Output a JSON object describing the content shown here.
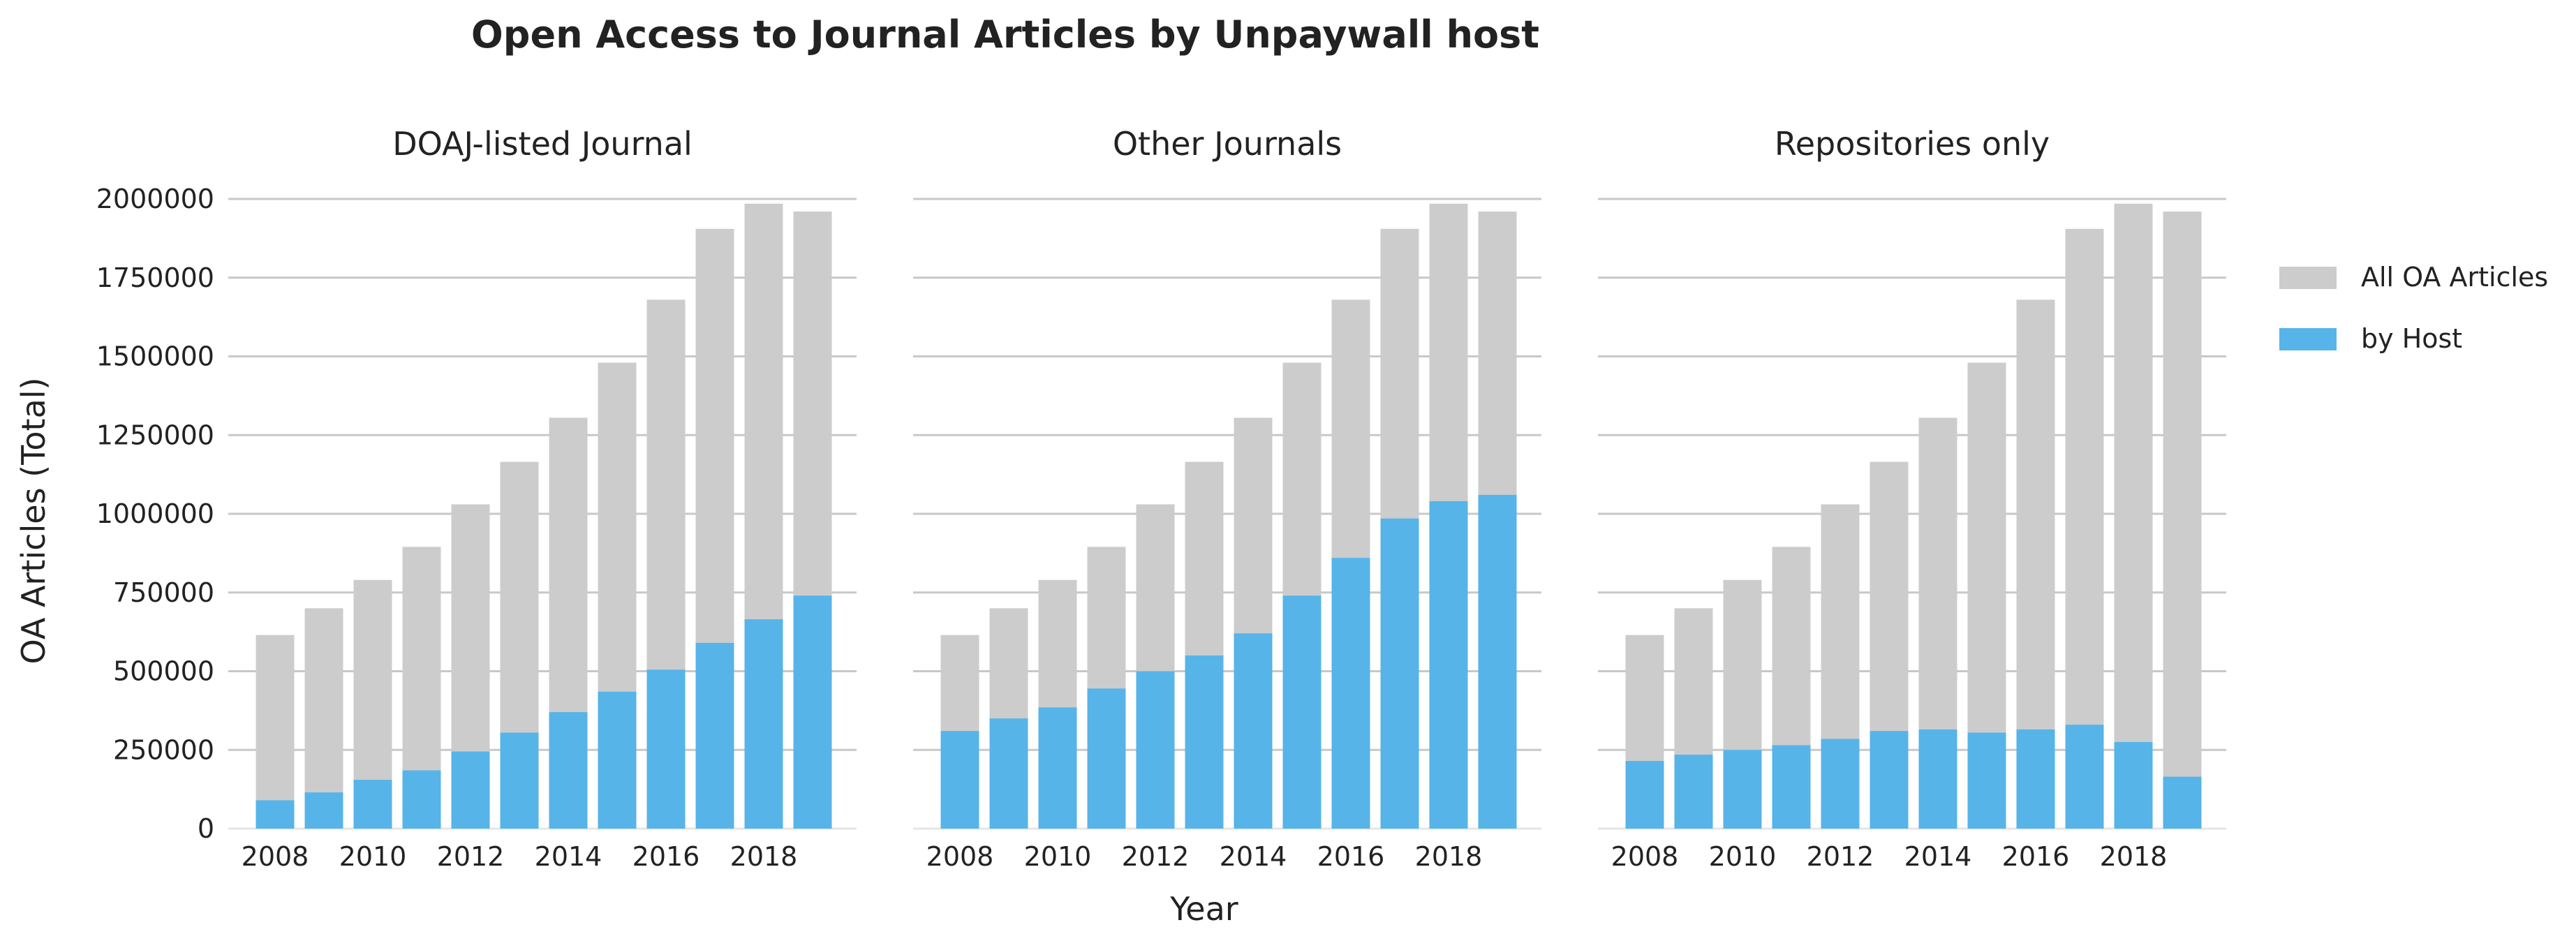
{
  "title": "Open Access to Journal Articles by Unpaywall host",
  "ylabel": "OA Articles (Total)",
  "xlabel": "Year",
  "legend": {
    "placement": "right",
    "items": [
      {
        "label": "All OA Articles",
        "color": "#cccccc"
      },
      {
        "label": "by Host",
        "color": "#56b4e9"
      }
    ]
  },
  "chart_data": [
    {
      "type": "bar",
      "title": "DOAJ-listed Journal",
      "x": [
        2008,
        2009,
        2010,
        2011,
        2012,
        2013,
        2014,
        2015,
        2016,
        2017,
        2018,
        2019
      ],
      "series": [
        {
          "name": "All OA Articles",
          "color": "#cccccc",
          "values": [
            615000,
            700000,
            790000,
            895000,
            1030000,
            1165000,
            1305000,
            1480000,
            1680000,
            1905000,
            1985000,
            1960000
          ]
        },
        {
          "name": "by Host",
          "color": "#56b4e9",
          "values": [
            90000,
            115000,
            155000,
            185000,
            245000,
            305000,
            370000,
            435000,
            505000,
            590000,
            665000,
            740000
          ]
        }
      ],
      "xticks": [
        2008,
        2010,
        2012,
        2014,
        2016,
        2018
      ],
      "yticks": [
        0,
        250000,
        500000,
        750000,
        1000000,
        1250000,
        1500000,
        1750000,
        2000000
      ],
      "ylim": [
        0,
        2000000
      ],
      "grid": "y"
    },
    {
      "type": "bar",
      "title": "Other Journals",
      "x": [
        2008,
        2009,
        2010,
        2011,
        2012,
        2013,
        2014,
        2015,
        2016,
        2017,
        2018,
        2019
      ],
      "series": [
        {
          "name": "All OA Articles",
          "color": "#cccccc",
          "values": [
            615000,
            700000,
            790000,
            895000,
            1030000,
            1165000,
            1305000,
            1480000,
            1680000,
            1905000,
            1985000,
            1960000
          ]
        },
        {
          "name": "by Host",
          "color": "#56b4e9",
          "values": [
            310000,
            350000,
            385000,
            445000,
            500000,
            550000,
            620000,
            740000,
            860000,
            985000,
            1040000,
            1060000
          ]
        }
      ],
      "xticks": [
        2008,
        2010,
        2012,
        2014,
        2016,
        2018
      ],
      "ylim": [
        0,
        2000000
      ],
      "grid": "y"
    },
    {
      "type": "bar",
      "title": "Repositories only",
      "x": [
        2008,
        2009,
        2010,
        2011,
        2012,
        2013,
        2014,
        2015,
        2016,
        2017,
        2018,
        2019
      ],
      "series": [
        {
          "name": "All OA Articles",
          "color": "#cccccc",
          "values": [
            615000,
            700000,
            790000,
            895000,
            1030000,
            1165000,
            1305000,
            1480000,
            1680000,
            1905000,
            1985000,
            1960000
          ]
        },
        {
          "name": "by Host",
          "color": "#56b4e9",
          "values": [
            215000,
            235000,
            250000,
            265000,
            285000,
            310000,
            315000,
            305000,
            315000,
            330000,
            275000,
            165000
          ]
        }
      ],
      "xticks": [
        2008,
        2010,
        2012,
        2014,
        2016,
        2018
      ],
      "ylim": [
        0,
        2000000
      ],
      "grid": "y"
    }
  ]
}
